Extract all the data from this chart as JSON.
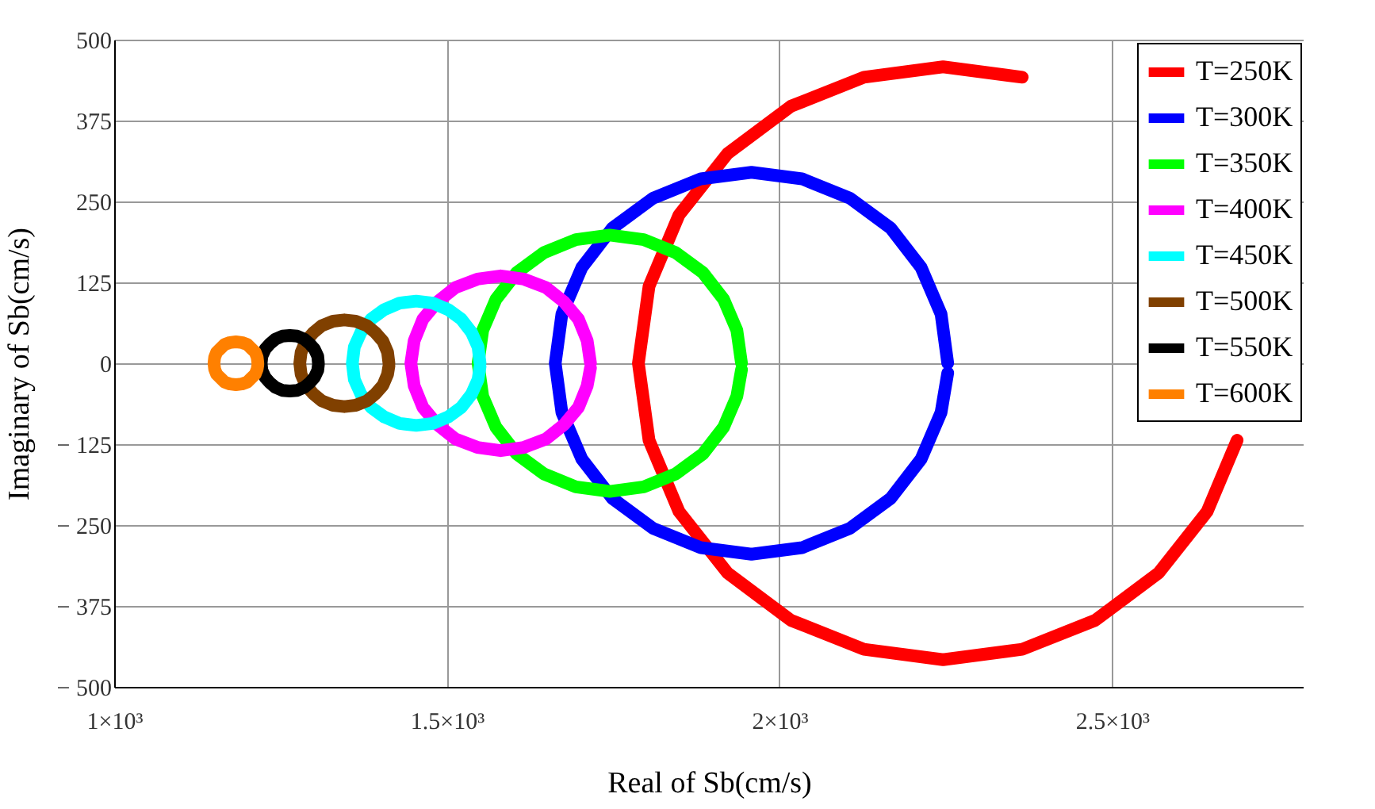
{
  "chart_data": {
    "type": "line",
    "xlabel": "Real of Sb(cm/s)",
    "ylabel": "Imaginary of Sb(cm/s)",
    "xlim": [
      1000,
      2788
    ],
    "ylim": [
      -500,
      500
    ],
    "xticks": [
      {
        "value": 1000,
        "label": "1×10³"
      },
      {
        "value": 1500,
        "label": "1.5×10³"
      },
      {
        "value": 2000,
        "label": "2×10³"
      },
      {
        "value": 2500,
        "label": "2.5×10³"
      }
    ],
    "yticks": [
      {
        "value": -500,
        "label": "− 500"
      },
      {
        "value": -375,
        "label": "− 375"
      },
      {
        "value": -250,
        "label": "− 250"
      },
      {
        "value": -125,
        "label": "− 125"
      },
      0,
      125,
      250,
      375,
      500
    ],
    "grid": true,
    "legend": "top right",
    "marker": "none",
    "line_style": "solid",
    "series": [
      {
        "name": "T=250K",
        "color": "#ff0000",
        "x": [
          2365,
          2246,
          2127,
          2017,
          1922,
          1849,
          1804,
          1788,
          1804,
          1849,
          1922,
          2017,
          2127,
          2246,
          2365,
          2475,
          2570,
          2643,
          2688
        ],
        "values": [
          442,
          458,
          442,
          397,
          324,
          229,
          119,
          0,
          -119,
          -229,
          -324,
          -397,
          -442,
          -458,
          -442,
          -397,
          -324,
          -229,
          -119
        ]
      },
      {
        "name": "T=300K",
        "color": "#0000ff",
        "x": [
          2253,
          2243,
          2213,
          2167,
          2106,
          2034,
          1958,
          1882,
          1810,
          1749,
          1703,
          1673,
          1663,
          1673,
          1703,
          1749,
          1810,
          1882,
          1958,
          2034,
          2106,
          2167,
          2213,
          2243,
          2253
        ],
        "values": [
          0,
          76,
          148,
          209,
          255,
          285,
          295,
          285,
          255,
          209,
          148,
          76,
          0,
          -76,
          -148,
          -209,
          -255,
          -285,
          -295,
          -285,
          -255,
          -209,
          -148,
          -76,
          -15
        ]
      },
      {
        "name": "T=350K",
        "color": "#00ff00",
        "x": [
          1943,
          1936,
          1916,
          1885,
          1844,
          1796,
          1745,
          1694,
          1646,
          1605,
          1574,
          1554,
          1547,
          1554,
          1574,
          1605,
          1646,
          1694,
          1745,
          1796,
          1844,
          1885,
          1916,
          1936,
          1943
        ],
        "values": [
          0,
          51,
          99,
          140,
          171,
          191,
          198,
          191,
          171,
          140,
          99,
          51,
          0,
          -51,
          -99,
          -140,
          -171,
          -191,
          -198,
          -191,
          -171,
          -140,
          -99,
          -51,
          -10
        ]
      },
      {
        "name": "T=400K",
        "color": "#ff00ff",
        "x": [
          1716,
          1711,
          1698,
          1676,
          1649,
          1616,
          1581,
          1546,
          1513,
          1486,
          1464,
          1451,
          1446,
          1451,
          1464,
          1486,
          1513,
          1546,
          1581,
          1616,
          1649,
          1676,
          1698,
          1711,
          1716
        ],
        "values": [
          0,
          35,
          68,
          95,
          117,
          130,
          135,
          130,
          117,
          95,
          68,
          35,
          0,
          -35,
          -68,
          -95,
          -117,
          -130,
          -135,
          -130,
          -117,
          -95,
          -68,
          -35,
          -7
        ]
      },
      {
        "name": "T=450K",
        "color": "#00ffff",
        "x": [
          1550,
          1547,
          1537,
          1522,
          1502,
          1479,
          1454,
          1429,
          1406,
          1386,
          1371,
          1361,
          1358,
          1361,
          1371,
          1386,
          1406,
          1429,
          1454,
          1479,
          1502,
          1522,
          1537,
          1547,
          1550
        ],
        "values": [
          0,
          25,
          48,
          68,
          83,
          93,
          96,
          93,
          83,
          68,
          48,
          25,
          0,
          -25,
          -48,
          -68,
          -83,
          -93,
          -96,
          -93,
          -83,
          -68,
          -48,
          -25,
          -5
        ]
      },
      {
        "name": "T=500K",
        "color": "#804000",
        "x": [
          1413,
          1411,
          1404,
          1393,
          1380,
          1363,
          1346,
          1329,
          1312,
          1299,
          1288,
          1281,
          1279,
          1281,
          1288,
          1299,
          1312,
          1329,
          1346,
          1363,
          1380,
          1393,
          1404,
          1411,
          1413
        ],
        "values": [
          0,
          17,
          34,
          47,
          58,
          65,
          67,
          65,
          58,
          47,
          34,
          17,
          0,
          -17,
          -34,
          -47,
          -58,
          -65,
          -67,
          -65,
          -58,
          -47,
          -34,
          -17,
          -4
        ]
      },
      {
        "name": "T=550K",
        "color": "#000000",
        "x": [
          1307,
          1306,
          1301,
          1294,
          1286,
          1275,
          1264,
          1253,
          1242,
          1234,
          1227,
          1222,
          1221,
          1222,
          1227,
          1234,
          1242,
          1253,
          1264,
          1275,
          1286,
          1294,
          1301,
          1306,
          1307
        ],
        "values": [
          0,
          11,
          22,
          30,
          37,
          42,
          43,
          42,
          37,
          30,
          22,
          11,
          0,
          -11,
          -22,
          -30,
          -37,
          -42,
          -43,
          -42,
          -37,
          -30,
          -22,
          -11,
          -2
        ]
      },
      {
        "name": "T=600K",
        "color": "#ff8000",
        "x": [
          1216,
          1215,
          1212,
          1206,
          1200,
          1192,
          1183,
          1174,
          1166,
          1160,
          1154,
          1151,
          1150,
          1151,
          1154,
          1160,
          1166,
          1174,
          1183,
          1192,
          1200,
          1206,
          1212,
          1215,
          1216
        ],
        "values": [
          0,
          9,
          17,
          23,
          29,
          32,
          33,
          32,
          29,
          23,
          17,
          9,
          0,
          -9,
          -17,
          -23,
          -29,
          -32,
          -33,
          -32,
          -29,
          -23,
          -17,
          -9,
          -2
        ]
      }
    ]
  }
}
